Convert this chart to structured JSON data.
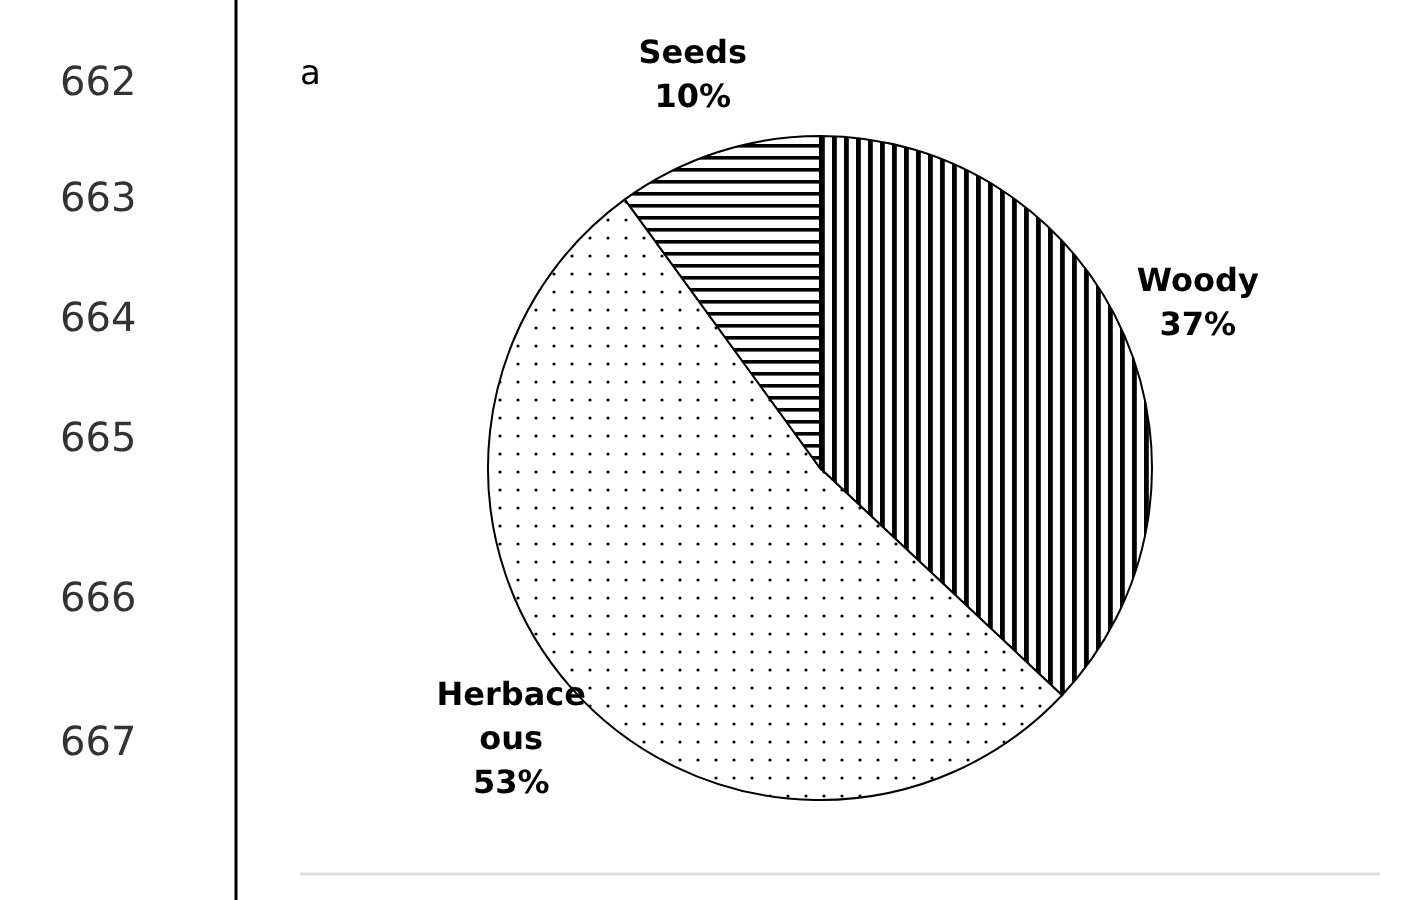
{
  "chart_data": {
    "type": "pie",
    "categories": [
      "Woody",
      "Herbaceous",
      "Seeds"
    ],
    "values": [
      37,
      53,
      10
    ],
    "colors": [
      "#000000",
      "#000000",
      "#000000"
    ],
    "value_labels": [
      "37%",
      "53%",
      "10%"
    ],
    "annotations": [
      "a",
      "662",
      "663",
      "664",
      "665",
      "666",
      "667"
    ]
  }
}
